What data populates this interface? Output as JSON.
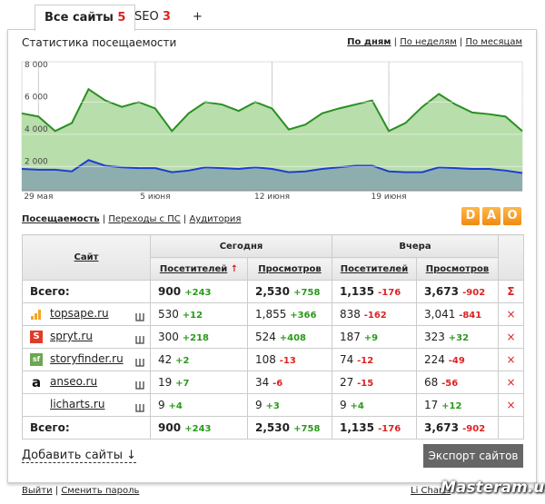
{
  "tabs": [
    {
      "label": "Все сайты",
      "count": "5"
    },
    {
      "label": "SEO",
      "count": "3"
    },
    {
      "label": "+"
    }
  ],
  "header": {
    "title": "Статистика посещаемости",
    "period_links": [
      "По дням",
      "По неделям",
      "По месяцам"
    ]
  },
  "chart_data": {
    "type": "area",
    "categories": [
      null,
      "29 мая",
      null,
      null,
      null,
      null,
      null,
      null,
      "5 июня",
      null,
      null,
      null,
      null,
      null,
      null,
      "12 июня",
      null,
      null,
      null,
      null,
      null,
      null,
      "19 июня",
      null,
      null,
      null,
      null,
      null,
      null,
      null,
      null
    ],
    "series": [
      {
        "color": "#2a8f22",
        "fill": "#b8deab",
        "values": [
          5300,
          5100,
          4200,
          4700,
          6800,
          6100,
          5700,
          6000,
          5600,
          4200,
          5300,
          6000,
          5850,
          5450,
          6000,
          5600,
          4300,
          4600,
          5300,
          5600,
          5850,
          6100,
          4200,
          4700,
          5700,
          6500,
          5850,
          5350,
          5250,
          5100,
          4200
        ]
      },
      {
        "color": "#1d3fd0",
        "fill": "#8eaead",
        "values": [
          1850,
          1800,
          1800,
          1700,
          2400,
          2050,
          1950,
          1900,
          1900,
          1650,
          1750,
          1950,
          1900,
          1850,
          1950,
          1850,
          1650,
          1700,
          1850,
          1950,
          2050,
          2050,
          1700,
          1650,
          1650,
          1950,
          1900,
          1850,
          1850,
          1750,
          1600
        ]
      }
    ],
    "ylim": [
      500,
      8500
    ],
    "yticks": [
      {
        "value": 2000,
        "label": "2 000"
      },
      {
        "value": 4000,
        "label": "4 000"
      },
      {
        "value": 6000,
        "label": "6 000"
      },
      {
        "value": 8000,
        "label": "8 000"
      }
    ],
    "grid": true
  },
  "section_links": [
    "Посещаемость",
    "Переходы с ПС",
    "Аудитория"
  ],
  "logo": [
    "D",
    "A",
    "O"
  ],
  "table": {
    "col_site": "Сайт",
    "groups": [
      "Сегодня",
      "Вчера"
    ],
    "subcols": [
      "Посетителей",
      "Просмотров",
      "Посетителей",
      "Просмотров"
    ],
    "sort_arrow": "↑",
    "total": {
      "label": "Всего:",
      "cells": [
        [
          "900",
          "+243"
        ],
        [
          "2,530",
          "+758"
        ],
        [
          "1,135",
          "-176"
        ],
        [
          "3,673",
          "-902"
        ]
      ],
      "action": "Σ"
    },
    "rows": [
      {
        "site": "topsape.ru",
        "cells": [
          [
            "530",
            "+12"
          ],
          [
            "1,855",
            "+366"
          ],
          [
            "838",
            "-162"
          ],
          [
            "3,041",
            "-841"
          ]
        ],
        "action": "×"
      },
      {
        "site": "spryt.ru",
        "icon": "S",
        "cells": [
          [
            "300",
            "+218"
          ],
          [
            "524",
            "+408"
          ],
          [
            "187",
            "+9"
          ],
          [
            "323",
            "+32"
          ]
        ],
        "action": "×"
      },
      {
        "site": "storyfinder.ru",
        "icon": "sf",
        "cells": [
          [
            "42",
            "+2"
          ],
          [
            "108",
            "-13"
          ],
          [
            "74",
            "-12"
          ],
          [
            "224",
            "-49"
          ]
        ],
        "action": "×"
      },
      {
        "site": "anseo.ru",
        "icon": "a",
        "cells": [
          [
            "19",
            "+7"
          ],
          [
            "34",
            "-6"
          ],
          [
            "27",
            "-15"
          ],
          [
            "68",
            "-56"
          ]
        ],
        "action": "×"
      },
      {
        "site": "licharts.ru",
        "cells": [
          [
            "9",
            "+4"
          ],
          [
            "9",
            "+3"
          ],
          [
            "9",
            "+4"
          ],
          [
            "17",
            "+12"
          ]
        ],
        "action": "×"
      }
    ]
  },
  "footer": {
    "add_sites": "Добавить сайты",
    "add_arrow": "↓",
    "export": "Экспорт сайтов",
    "links": [
      "Выйти",
      "Сменить пароль"
    ],
    "licharts": "Li Charts",
    "watermark": "Masteram.us"
  }
}
